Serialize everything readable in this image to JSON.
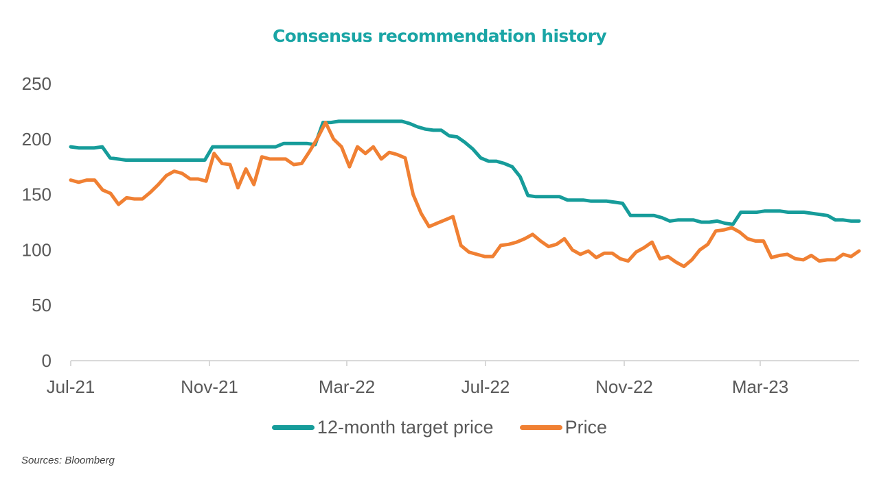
{
  "chart_data": {
    "type": "line",
    "title": "Consensus recommendation history",
    "xlabel": "",
    "ylabel": "",
    "ylim": [
      0,
      250
    ],
    "yticks": [
      "0",
      "50",
      "100",
      "150",
      "200",
      "250"
    ],
    "xticks": [
      "Jul-21",
      "Nov-21",
      "Mar-22",
      "Jul-22",
      "Nov-22",
      "Mar-23"
    ],
    "x_frequency": "weekly",
    "grid": false,
    "legend_position": "bottom",
    "series": [
      {
        "name": "12-month target price",
        "color": "#169c9a",
        "values": [
          193,
          192,
          192,
          192,
          193,
          183,
          182,
          181,
          181,
          181,
          181,
          181,
          181,
          181,
          181,
          181,
          181,
          181,
          193,
          193,
          193,
          193,
          193,
          193,
          193,
          193,
          193,
          196,
          196,
          196,
          196,
          195,
          215,
          215,
          216,
          216,
          216,
          216,
          216,
          216,
          216,
          216,
          216,
          214,
          211,
          209,
          208,
          208,
          203,
          202,
          197,
          191,
          183,
          180,
          180,
          178,
          175,
          166,
          149,
          148,
          148,
          148,
          148,
          145,
          145,
          145,
          144,
          144,
          144,
          143,
          142,
          131,
          131,
          131,
          131,
          129,
          126,
          127,
          127,
          127,
          125,
          125,
          126,
          124,
          123,
          134,
          134,
          134,
          135,
          135,
          135,
          134,
          134,
          134,
          133,
          132,
          131,
          127,
          127,
          126,
          126
        ],
        "x_start": "Jul-21"
      },
      {
        "name": "Price",
        "color": "#f08033",
        "values": [
          163,
          161,
          163,
          163,
          154,
          151,
          141,
          147,
          146,
          146,
          152,
          159,
          167,
          171,
          169,
          164,
          164,
          162,
          187,
          178,
          177,
          156,
          173,
          159,
          184,
          182,
          182,
          182,
          177,
          178,
          189,
          201,
          215,
          200,
          193,
          175,
          193,
          187,
          193,
          182,
          188,
          186,
          183,
          150,
          133,
          121,
          124,
          127,
          130,
          104,
          98,
          96,
          94,
          94,
          104,
          105,
          107,
          110,
          114,
          108,
          103,
          105,
          110,
          100,
          96,
          99,
          93,
          97,
          97,
          92,
          90,
          98,
          102,
          107,
          92,
          94,
          89,
          85,
          91,
          100,
          105,
          117,
          118,
          120,
          116,
          110,
          108,
          108,
          93,
          95,
          96,
          92,
          91,
          95,
          90,
          91,
          91,
          96,
          94,
          99
        ],
        "x_start": "Jul-21"
      }
    ]
  },
  "legend": {
    "items": [
      {
        "label": "12-month target price",
        "color": "#169c9a"
      },
      {
        "label": "Price",
        "color": "#f08033"
      }
    ]
  },
  "source": "Sources: Bloomberg"
}
